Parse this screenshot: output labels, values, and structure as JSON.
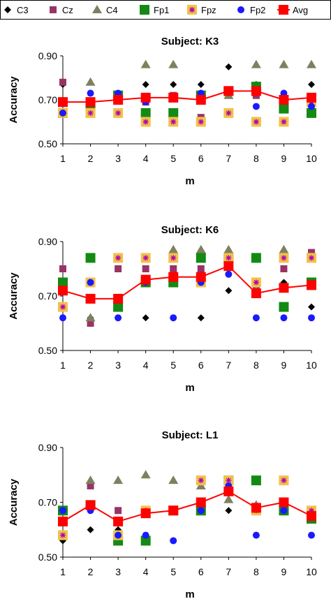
{
  "legend": [
    {
      "name": "C3",
      "color": "#000000",
      "marker": "diamond"
    },
    {
      "name": "Cz",
      "color": "#993366",
      "marker": "square-small"
    },
    {
      "name": "C4",
      "color": "#808060",
      "marker": "triangle"
    },
    {
      "name": "Fp1",
      "color": "#138a13",
      "marker": "square"
    },
    {
      "name": "Fpz",
      "color": "#f2c14a",
      "marker": "star-square"
    },
    {
      "name": "Fp2",
      "color": "#1a1aff",
      "marker": "circle"
    },
    {
      "name": "Avg",
      "color": "#ff0000",
      "marker": "square-line"
    }
  ],
  "chart_data": [
    {
      "type": "scatter",
      "title": "Subject: K3",
      "xlabel": "m",
      "ylabel": "Accuracy",
      "x": [
        1,
        2,
        3,
        4,
        5,
        6,
        7,
        8,
        9,
        10
      ],
      "ylim": [
        0.5,
        0.9
      ],
      "yticks": [
        "0.50",
        "0.70",
        "0.90"
      ],
      "series": [
        {
          "name": "C3",
          "values": [
            0.77,
            0.69,
            0.7,
            0.77,
            0.77,
            0.77,
            0.85,
            0.77,
            0.69,
            0.77
          ]
        },
        {
          "name": "Cz",
          "values": [
            0.78,
            0.69,
            0.72,
            0.69,
            0.72,
            0.62,
            0.74,
            0.72,
            0.66,
            0.7
          ]
        },
        {
          "name": "C4",
          "values": [
            0.64,
            0.78,
            0.7,
            0.86,
            0.86,
            0.72,
            0.72,
            0.86,
            0.86,
            0.86
          ]
        },
        {
          "name": "Fp1",
          "values": [
            0.64,
            0.67,
            0.72,
            0.64,
            0.64,
            0.72,
            0.74,
            0.76,
            0.66,
            0.64
          ]
        },
        {
          "name": "Fpz",
          "values": [
            0.64,
            0.64,
            0.64,
            0.6,
            0.6,
            0.6,
            0.64,
            0.6,
            0.6,
            0.69
          ]
        },
        {
          "name": "Fp2",
          "values": [
            0.64,
            0.73,
            0.73,
            0.69,
            0.71,
            0.73,
            0.74,
            0.67,
            0.73,
            0.67
          ]
        },
        {
          "name": "Avg",
          "values": [
            0.69,
            0.69,
            0.7,
            0.71,
            0.71,
            0.7,
            0.74,
            0.74,
            0.7,
            0.71
          ]
        }
      ]
    },
    {
      "type": "scatter",
      "title": "Subject: K6",
      "xlabel": "m",
      "ylabel": "Accuracy",
      "x": [
        1,
        2,
        3,
        4,
        5,
        6,
        7,
        8,
        9,
        10
      ],
      "ylim": [
        0.5,
        0.9
      ],
      "yticks": [
        "0.50",
        "0.70",
        "0.90"
      ],
      "series": [
        {
          "name": "C3",
          "values": [
            0.75,
            0.62,
            0.69,
            0.62,
            0.75,
            0.62,
            0.72,
            0.75,
            0.75,
            0.66
          ]
        },
        {
          "name": "Cz",
          "values": [
            0.8,
            0.6,
            0.8,
            0.8,
            0.8,
            0.8,
            0.84,
            0.72,
            0.8,
            0.86
          ]
        },
        {
          "name": "C4",
          "values": [
            0.75,
            0.62,
            0.69,
            0.75,
            0.87,
            0.87,
            0.87,
            0.72,
            0.87,
            0.84
          ]
        },
        {
          "name": "Fp1",
          "values": [
            0.75,
            0.84,
            0.66,
            0.75,
            0.75,
            0.84,
            0.84,
            0.84,
            0.66,
            0.75
          ]
        },
        {
          "name": "Fpz",
          "values": [
            0.66,
            0.75,
            0.84,
            0.84,
            0.84,
            0.75,
            0.84,
            0.75,
            0.84,
            0.84
          ]
        },
        {
          "name": "Fp2",
          "values": [
            0.62,
            0.75,
            0.62,
            0.75,
            0.62,
            0.75,
            0.78,
            0.62,
            0.62,
            0.62
          ]
        },
        {
          "name": "Avg",
          "values": [
            0.72,
            0.69,
            0.69,
            0.76,
            0.77,
            0.77,
            0.81,
            0.71,
            0.73,
            0.74
          ]
        }
      ]
    },
    {
      "type": "scatter",
      "title": "Subject: L1",
      "xlabel": "m",
      "ylabel": "Accuracy",
      "x": [
        1,
        2,
        3,
        4,
        5,
        6,
        7,
        8,
        9,
        10
      ],
      "ylim": [
        0.5,
        0.9
      ],
      "yticks": [
        "0.50",
        "0.70",
        "0.90"
      ],
      "series": [
        {
          "name": "C3",
          "values": [
            0.56,
            0.6,
            0.6,
            0.67,
            0.67,
            0.67,
            0.67,
            0.67,
            0.67,
            0.67
          ]
        },
        {
          "name": "Cz",
          "values": [
            0.67,
            0.76,
            0.67,
            0.67,
            0.67,
            0.67,
            0.78,
            0.67,
            0.67,
            0.67
          ]
        },
        {
          "name": "C4",
          "values": [
            0.67,
            0.78,
            0.78,
            0.8,
            0.78,
            0.76,
            0.71,
            0.69,
            0.69,
            0.67
          ]
        },
        {
          "name": "Fp1",
          "values": [
            0.67,
            0.69,
            0.56,
            0.56,
            0.67,
            0.67,
            0.78,
            0.78,
            0.67,
            0.64
          ]
        },
        {
          "name": "Fpz",
          "values": [
            0.58,
            0.69,
            0.58,
            0.67,
            0.67,
            0.78,
            0.78,
            0.67,
            0.78,
            0.67
          ]
        },
        {
          "name": "Fp2",
          "values": [
            0.67,
            0.67,
            0.58,
            0.58,
            0.56,
            0.67,
            0.76,
            0.58,
            0.67,
            0.58
          ]
        },
        {
          "name": "Avg",
          "values": [
            0.63,
            0.69,
            0.63,
            0.66,
            0.67,
            0.7,
            0.74,
            0.68,
            0.7,
            0.65
          ]
        }
      ]
    }
  ]
}
